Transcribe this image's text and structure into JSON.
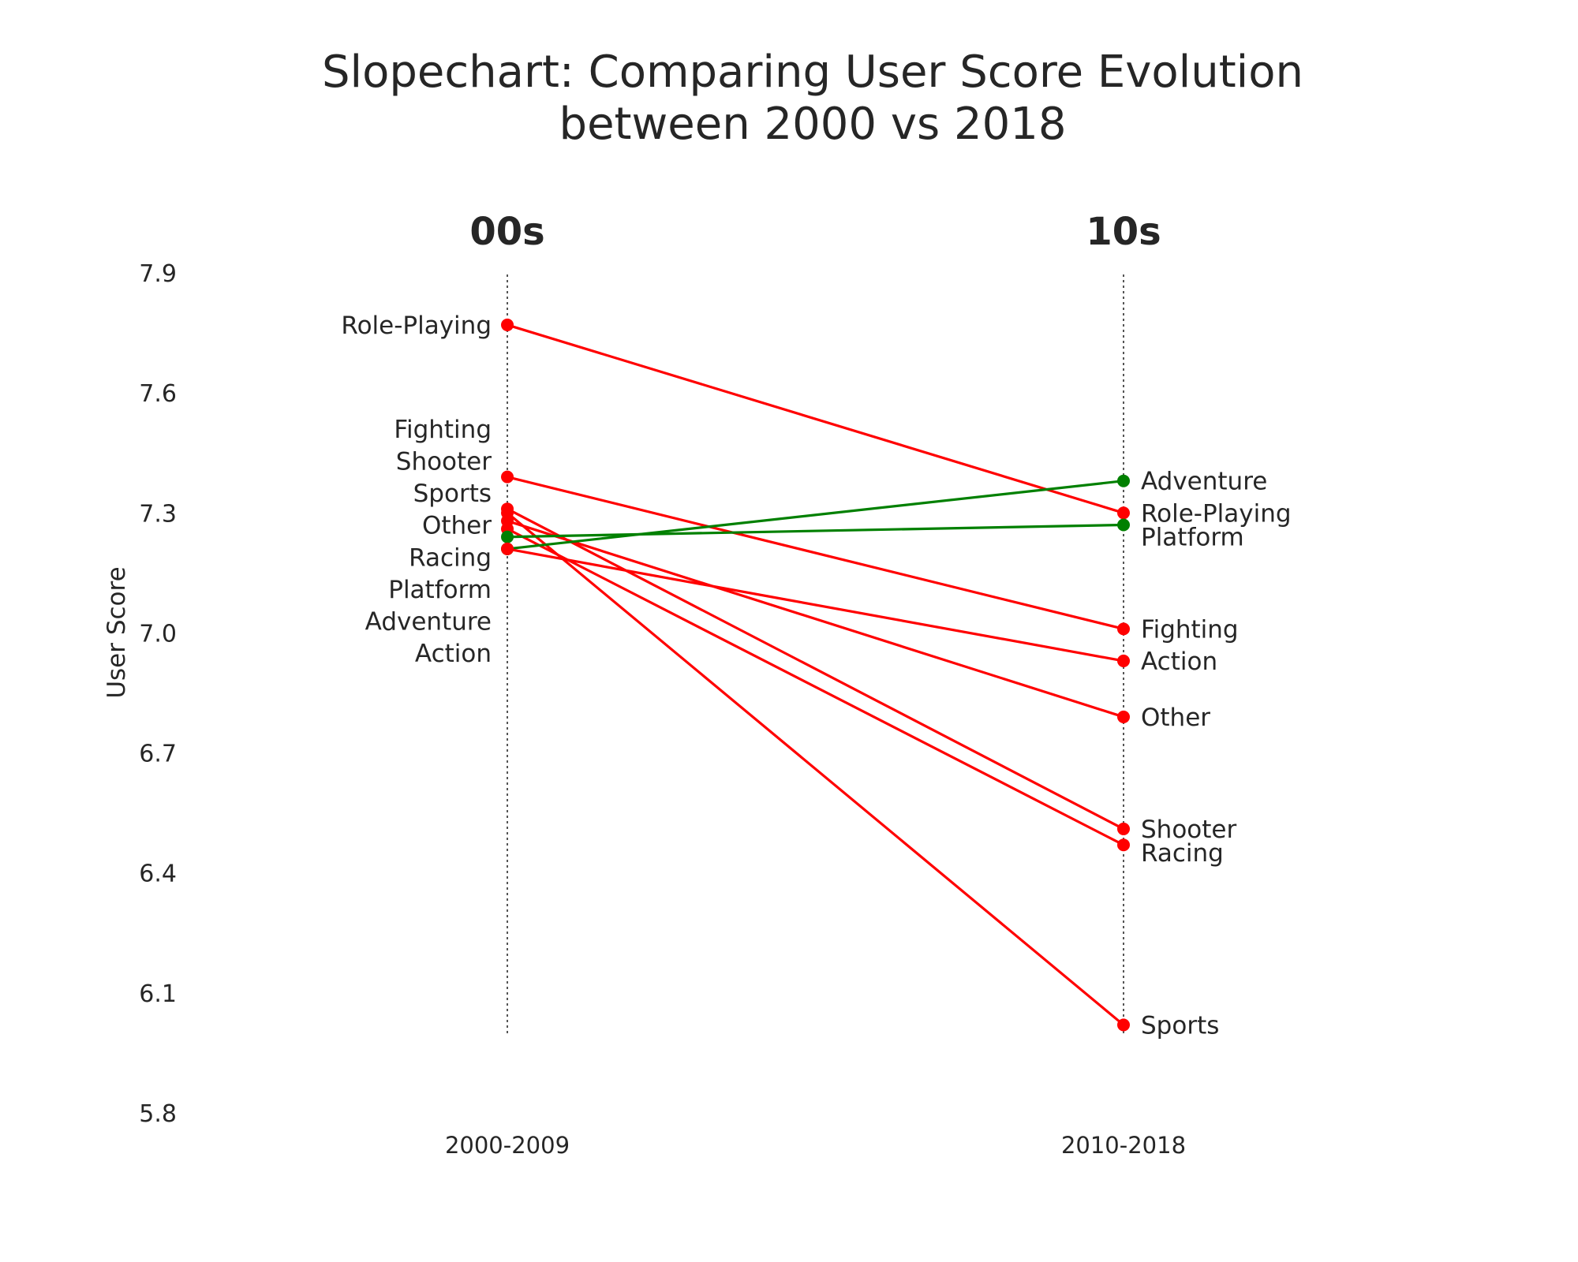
{
  "chart_data": {
    "type": "line",
    "subtype": "slopechart",
    "title_lines": [
      "Slopechart: Comparing User Score Evolution",
      "between 2000 vs 2018"
    ],
    "column_headers": [
      "00s",
      "10s"
    ],
    "categories": [
      "2000-2009",
      "2010-2018"
    ],
    "ylabel": "User Score",
    "ylim": [
      5.8,
      7.9
    ],
    "yticks": [
      "5.8",
      "6.1",
      "6.4",
      "6.7",
      "7.0",
      "7.3",
      "7.6",
      "7.9"
    ],
    "grid": false,
    "colors": {
      "increase": "#008000",
      "decrease": "#ff0000",
      "guide": "#555555",
      "text": "#262626"
    },
    "series": [
      {
        "name": "Role-Playing",
        "values": [
          7.77,
          7.3
        ]
      },
      {
        "name": "Fighting",
        "values": [
          7.39,
          7.01
        ]
      },
      {
        "name": "Shooter",
        "values": [
          7.31,
          6.51
        ]
      },
      {
        "name": "Sports",
        "values": [
          7.3,
          6.02
        ]
      },
      {
        "name": "Other",
        "values": [
          7.28,
          6.79
        ]
      },
      {
        "name": "Racing",
        "values": [
          7.26,
          6.47
        ]
      },
      {
        "name": "Platform",
        "values": [
          7.24,
          7.27
        ]
      },
      {
        "name": "Adventure",
        "values": [
          7.21,
          7.38
        ]
      },
      {
        "name": "Action",
        "values": [
          7.21,
          6.93
        ]
      }
    ],
    "left_labels": [
      "Role-Playing",
      "Fighting",
      "Shooter",
      "Sports",
      "Other",
      "Racing",
      "Platform",
      "Adventure",
      "Action"
    ],
    "right_labels": [
      "Adventure",
      "Role-Playing",
      "Platform",
      "Fighting",
      "Action",
      "Other",
      "Shooter",
      "Racing",
      "Sports"
    ]
  }
}
